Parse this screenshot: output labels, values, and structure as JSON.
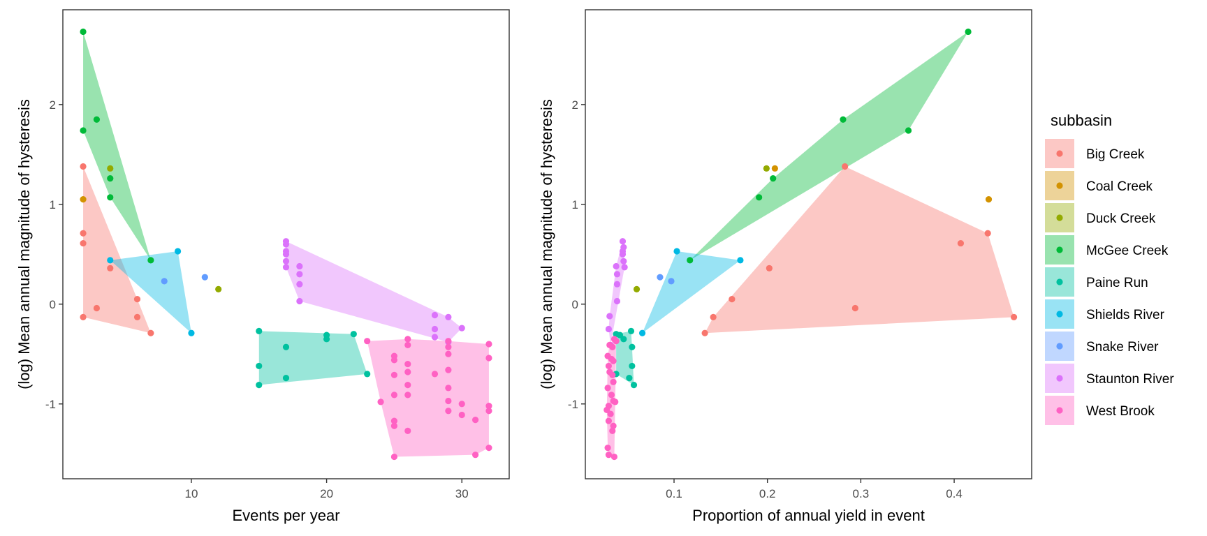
{
  "legend": {
    "title": "subbasin",
    "entries": [
      {
        "name": "Big Creek",
        "color": "#F8766D"
      },
      {
        "name": "Coal Creek",
        "color": "#D39200"
      },
      {
        "name": "Duck Creek",
        "color": "#93AA00"
      },
      {
        "name": "McGee Creek",
        "color": "#00BA38"
      },
      {
        "name": "Paine Run",
        "color": "#00C19F"
      },
      {
        "name": "Shields River",
        "color": "#00B9E3"
      },
      {
        "name": "Snake River",
        "color": "#619CFF"
      },
      {
        "name": "Staunton River",
        "color": "#DB72FB"
      },
      {
        "name": "West Brook",
        "color": "#FF61C3"
      }
    ]
  },
  "chart_data": [
    {
      "type": "scatter",
      "title": "",
      "xlabel": "Events per year",
      "ylabel": "(log) Mean annual magnitude of hysteresis",
      "xlim": [
        0.5,
        33.5
      ],
      "ylim": [
        -1.75,
        2.95
      ],
      "xticks": [
        10,
        20,
        30
      ],
      "yticks": [
        -1,
        0,
        1,
        2
      ],
      "grid": false,
      "hulls": true,
      "legend_position": "right",
      "series": [
        {
          "name": "Big Creek",
          "points": [
            [
              2,
              1.38
            ],
            [
              2,
              0.71
            ],
            [
              2,
              0.61
            ],
            [
              4,
              0.36
            ],
            [
              3,
              -0.04
            ],
            [
              2,
              -0.13
            ],
            [
              6,
              0.05
            ],
            [
              6,
              -0.13
            ],
            [
              7,
              -0.29
            ]
          ]
        },
        {
          "name": "Coal Creek",
          "points": [
            [
              2,
              1.05
            ]
          ]
        },
        {
          "name": "Duck Creek",
          "points": [
            [
              4,
              1.36
            ],
            [
              12,
              0.15
            ]
          ]
        },
        {
          "name": "McGee Creek",
          "points": [
            [
              2,
              2.73
            ],
            [
              2,
              1.74
            ],
            [
              3,
              1.85
            ],
            [
              4,
              1.26
            ],
            [
              4,
              1.07
            ],
            [
              7,
              0.44
            ]
          ]
        },
        {
          "name": "Paine Run",
          "points": [
            [
              15,
              -0.27
            ],
            [
              15,
              -0.62
            ],
            [
              15,
              -0.81
            ],
            [
              17,
              -0.43
            ],
            [
              17,
              -0.74
            ],
            [
              20,
              -0.31
            ],
            [
              20,
              -0.35
            ],
            [
              22,
              -0.3
            ],
            [
              23,
              -0.7
            ]
          ]
        },
        {
          "name": "Shields River",
          "points": [
            [
              4,
              0.44
            ],
            [
              9,
              0.53
            ],
            [
              10,
              -0.29
            ]
          ]
        },
        {
          "name": "Snake River",
          "points": [
            [
              8,
              0.23
            ],
            [
              11,
              0.27
            ]
          ]
        },
        {
          "name": "Staunton River",
          "points": [
            [
              17,
              0.63
            ],
            [
              17,
              0.6
            ],
            [
              17,
              0.53
            ],
            [
              17,
              0.5
            ],
            [
              17,
              0.43
            ],
            [
              17,
              0.37
            ],
            [
              18,
              0.38
            ],
            [
              18,
              0.3
            ],
            [
              18,
              0.2
            ],
            [
              18,
              0.03
            ],
            [
              28,
              -0.11
            ],
            [
              28,
              -0.25
            ],
            [
              28,
              -0.33
            ],
            [
              29,
              -0.13
            ],
            [
              29,
              -0.38
            ],
            [
              30,
              -0.24
            ]
          ]
        },
        {
          "name": "West Brook",
          "points": [
            [
              23,
              -0.37
            ],
            [
              24,
              -0.98
            ],
            [
              25,
              -0.52
            ],
            [
              25,
              -0.56
            ],
            [
              25,
              -0.71
            ],
            [
              25,
              -0.91
            ],
            [
              25,
              -1.17
            ],
            [
              25,
              -1.22
            ],
            [
              25,
              -1.53
            ],
            [
              26,
              -0.35
            ],
            [
              26,
              -0.41
            ],
            [
              26,
              -0.6
            ],
            [
              26,
              -0.68
            ],
            [
              26,
              -0.81
            ],
            [
              26,
              -0.91
            ],
            [
              26,
              -1.27
            ],
            [
              28,
              -0.7
            ],
            [
              29,
              -0.37
            ],
            [
              29,
              -0.43
            ],
            [
              29,
              -0.5
            ],
            [
              29,
              -0.66
            ],
            [
              29,
              -0.84
            ],
            [
              29,
              -0.97
            ],
            [
              29,
              -1.07
            ],
            [
              30,
              -1.0
            ],
            [
              30,
              -1.11
            ],
            [
              31,
              -1.16
            ],
            [
              31,
              -1.51
            ],
            [
              32,
              -0.4
            ],
            [
              32,
              -0.54
            ],
            [
              32,
              -1.02
            ],
            [
              32,
              -1.07
            ],
            [
              32,
              -1.44
            ]
          ]
        }
      ]
    },
    {
      "type": "scatter",
      "title": "",
      "xlabel": "Proportion of annual yield in event",
      "ylabel": "(log) Mean annual magnitude of hysteresis",
      "xlim": [
        0.005,
        0.483
      ],
      "ylim": [
        -1.75,
        2.95
      ],
      "xticks": [
        0.1,
        0.2,
        0.3,
        0.4
      ],
      "yticks": [
        -1,
        0,
        1,
        2
      ],
      "grid": false,
      "hulls": true,
      "legend_position": "right",
      "series": [
        {
          "name": "Big Creek",
          "points": [
            [
              0.283,
              1.38
            ],
            [
              0.436,
              0.71
            ],
            [
              0.407,
              0.61
            ],
            [
              0.202,
              0.36
            ],
            [
              0.162,
              0.05
            ],
            [
              0.294,
              -0.04
            ],
            [
              0.142,
              -0.13
            ],
            [
              0.464,
              -0.13
            ],
            [
              0.133,
              -0.29
            ]
          ]
        },
        {
          "name": "Coal Creek",
          "points": [
            [
              0.208,
              1.36
            ],
            [
              0.437,
              1.05
            ]
          ]
        },
        {
          "name": "Duck Creek",
          "points": [
            [
              0.199,
              1.36
            ],
            [
              0.06,
              0.15
            ]
          ]
        },
        {
          "name": "McGee Creek",
          "points": [
            [
              0.415,
              2.73
            ],
            [
              0.281,
              1.85
            ],
            [
              0.351,
              1.74
            ],
            [
              0.206,
              1.26
            ],
            [
              0.191,
              1.07
            ],
            [
              0.117,
              0.44
            ]
          ]
        },
        {
          "name": "Paine Run",
          "points": [
            [
              0.038,
              -0.3
            ],
            [
              0.042,
              -0.31
            ],
            [
              0.046,
              -0.35
            ],
            [
              0.054,
              -0.27
            ],
            [
              0.055,
              -0.43
            ],
            [
              0.055,
              -0.62
            ],
            [
              0.052,
              -0.74
            ],
            [
              0.057,
              -0.81
            ],
            [
              0.038,
              -0.7
            ]
          ]
        },
        {
          "name": "Shields River",
          "points": [
            [
              0.103,
              0.53
            ],
            [
              0.171,
              0.44
            ],
            [
              0.066,
              -0.29
            ]
          ]
        },
        {
          "name": "Snake River",
          "points": [
            [
              0.085,
              0.27
            ],
            [
              0.097,
              0.23
            ]
          ]
        },
        {
          "name": "Staunton River",
          "points": [
            [
              0.045,
              0.63
            ],
            [
              0.046,
              0.57
            ],
            [
              0.045,
              0.53
            ],
            [
              0.045,
              0.5
            ],
            [
              0.046,
              0.43
            ],
            [
              0.047,
              0.37
            ],
            [
              0.038,
              0.38
            ],
            [
              0.039,
              0.3
            ],
            [
              0.039,
              0.2
            ],
            [
              0.039,
              0.03
            ],
            [
              0.031,
              -0.12
            ],
            [
              0.03,
              -0.25
            ],
            [
              0.032,
              -0.41
            ]
          ]
        },
        {
          "name": "West Brook",
          "points": [
            [
              0.036,
              -0.35
            ],
            [
              0.038,
              -0.37
            ],
            [
              0.031,
              -0.41
            ],
            [
              0.034,
              -0.43
            ],
            [
              0.029,
              -0.52
            ],
            [
              0.033,
              -0.55
            ],
            [
              0.035,
              -0.57
            ],
            [
              0.03,
              -0.62
            ],
            [
              0.031,
              -0.68
            ],
            [
              0.034,
              -0.71
            ],
            [
              0.035,
              -0.78
            ],
            [
              0.029,
              -0.84
            ],
            [
              0.033,
              -0.91
            ],
            [
              0.035,
              -0.97
            ],
            [
              0.037,
              -0.98
            ],
            [
              0.03,
              -1.02
            ],
            [
              0.028,
              -1.06
            ],
            [
              0.032,
              -1.1
            ],
            [
              0.03,
              -1.17
            ],
            [
              0.035,
              -1.22
            ],
            [
              0.034,
              -1.27
            ],
            [
              0.029,
              -1.44
            ],
            [
              0.03,
              -1.51
            ],
            [
              0.036,
              -1.53
            ]
          ]
        }
      ]
    }
  ]
}
